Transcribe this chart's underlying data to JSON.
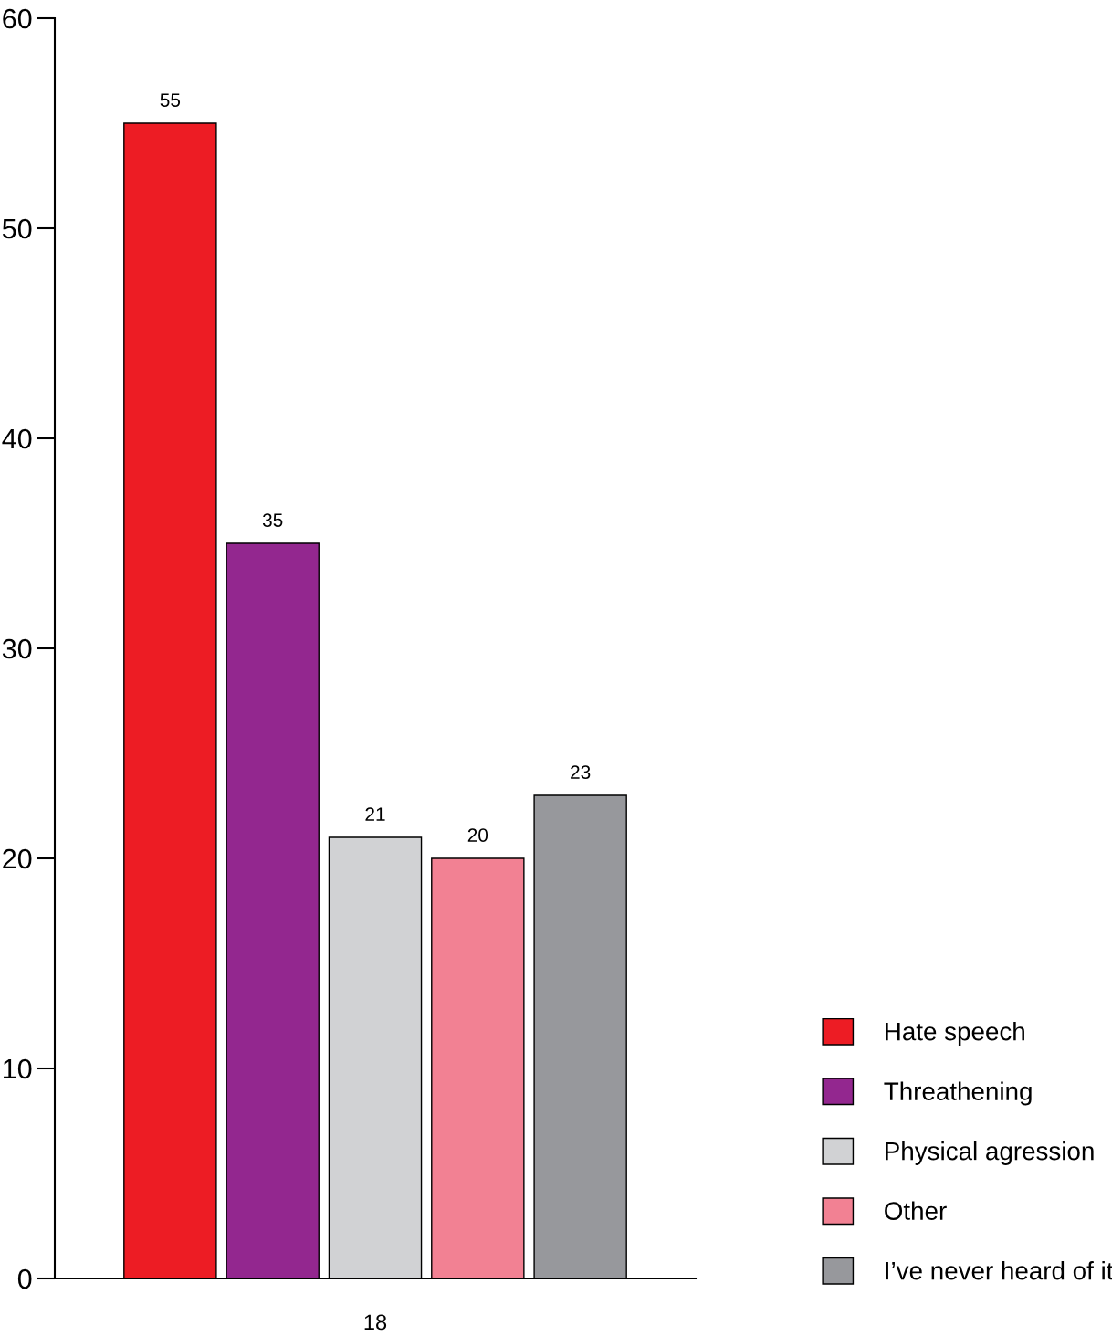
{
  "chart_data": {
    "type": "bar",
    "categories": [
      "18"
    ],
    "series": [
      {
        "name": "Hate speech",
        "color": "#ed1c24",
        "values": [
          55
        ]
      },
      {
        "name": "Threathening",
        "color": "#93278f",
        "values": [
          35
        ]
      },
      {
        "name": "Physical agression",
        "color": "#d1d2d4",
        "values": [
          21
        ]
      },
      {
        "name": "Other",
        "color": "#f28193",
        "values": [
          20
        ]
      },
      {
        "name": "I’ve never heard of it",
        "color": "#97989c",
        "values": [
          23
        ]
      }
    ],
    "ylim": [
      0,
      60
    ],
    "yticks": [
      0,
      10,
      20,
      30,
      40,
      50,
      60
    ],
    "grid": false,
    "legend": "bottom right",
    "data_labels": true
  }
}
